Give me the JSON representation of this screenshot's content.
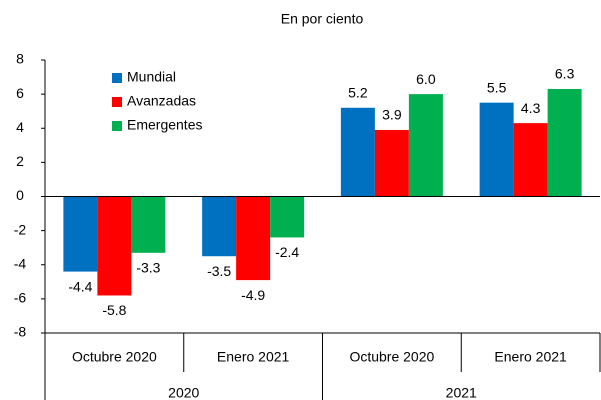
{
  "chart_data": {
    "type": "bar",
    "title": "En por ciento",
    "categories": [
      "Octubre 2020",
      "Enero 2021",
      "Octubre 2020",
      "Enero 2021"
    ],
    "groups": [
      "2020",
      "2021"
    ],
    "series": [
      {
        "name": "Mundial",
        "color": "#0070c0",
        "values": [
          -4.4,
          -3.5,
          5.2,
          5.5
        ],
        "value_labels": [
          "-4.4",
          "-3.5",
          "5.2",
          "5.5"
        ]
      },
      {
        "name": "Avanzadas",
        "color": "#ff0000",
        "values": [
          -5.8,
          -4.9,
          3.9,
          4.3
        ],
        "value_labels": [
          "-5.8",
          "-4.9",
          "3.9",
          "4.3"
        ]
      },
      {
        "name": "Emergentes",
        "color": "#00b050",
        "values": [
          -3.3,
          -2.4,
          6.0,
          6.3
        ],
        "value_labels": [
          "-3.3",
          "-2.4",
          "6.0",
          "6.3"
        ]
      }
    ],
    "ylim": [
      -8,
      8
    ],
    "yticks": [
      -8,
      -6,
      -4,
      -2,
      0,
      2,
      4,
      6,
      8
    ],
    "legend": "top-left"
  }
}
